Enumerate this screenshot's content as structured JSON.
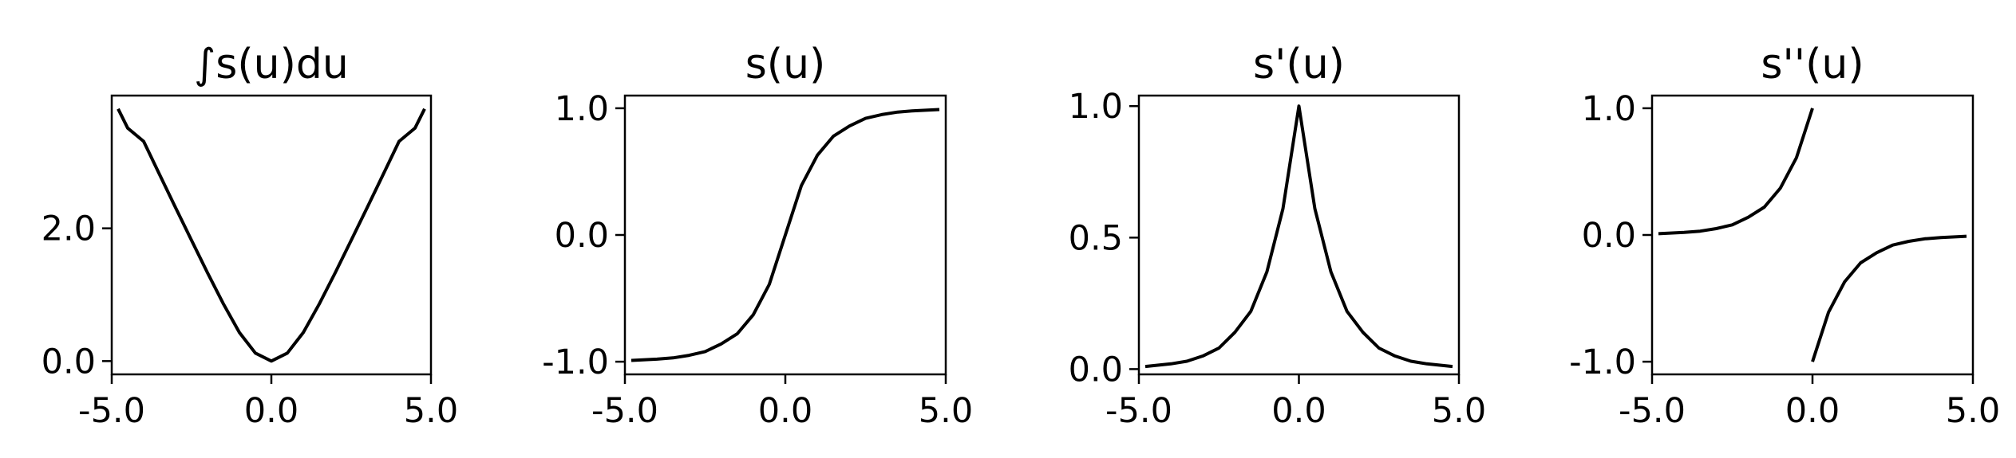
{
  "figure": {
    "background": "#ffffff",
    "line_color": "#000000"
  },
  "chart_data": [
    {
      "type": "line",
      "title": "∫s(u)du",
      "xlabel": "",
      "ylabel": "",
      "xlim": [
        -5.0,
        5.0
      ],
      "ylim": [
        -0.2,
        4.0
      ],
      "x_ticks": [
        -5.0,
        0.0,
        5.0
      ],
      "x_tick_labels": [
        "-5.0",
        "0.0",
        "5.0"
      ],
      "y_ticks": [
        0.0,
        2.0
      ],
      "y_tick_labels": [
        "0.0",
        "2.0"
      ],
      "grid": false,
      "legend": "none",
      "series": [
        {
          "x": [
            -4.8,
            -4.5,
            -4.0,
            -3.5,
            -3.0,
            -2.5,
            -2.0,
            -1.5,
            -1.0,
            -0.5,
            0.0,
            0.5,
            1.0,
            1.5,
            2.0,
            2.5,
            3.0,
            3.5,
            4.0,
            4.5,
            4.8
          ],
          "y": [
            3.8,
            3.51,
            3.31,
            2.81,
            2.31,
            1.82,
            1.33,
            0.86,
            0.43,
            0.12,
            0.0,
            0.12,
            0.43,
            0.86,
            1.33,
            1.82,
            2.31,
            2.81,
            3.31,
            3.51,
            3.8
          ]
        }
      ]
    },
    {
      "type": "line",
      "title": "s(u)",
      "xlabel": "",
      "ylabel": "",
      "xlim": [
        -5.0,
        5.0
      ],
      "ylim": [
        -1.1,
        1.1
      ],
      "x_ticks": [
        -5.0,
        0.0,
        5.0
      ],
      "x_tick_labels": [
        "-5.0",
        "0.0",
        "5.0"
      ],
      "y_ticks": [
        -1.0,
        0.0,
        1.0
      ],
      "y_tick_labels": [
        "-1.0",
        "0.0",
        "1.0"
      ],
      "grid": false,
      "legend": "none",
      "series": [
        {
          "x": [
            -4.8,
            -4.0,
            -3.5,
            -3.0,
            -2.5,
            -2.0,
            -1.5,
            -1.0,
            -0.5,
            0.0,
            0.5,
            1.0,
            1.5,
            2.0,
            2.5,
            3.0,
            3.5,
            4.0,
            4.8
          ],
          "y": [
            -0.99,
            -0.98,
            -0.97,
            -0.95,
            -0.92,
            -0.86,
            -0.78,
            -0.63,
            -0.39,
            0.0,
            0.39,
            0.63,
            0.78,
            0.86,
            0.92,
            0.95,
            0.97,
            0.98,
            0.99
          ]
        }
      ]
    },
    {
      "type": "line",
      "title": "s'(u)",
      "xlabel": "",
      "ylabel": "",
      "xlim": [
        -5.0,
        5.0
      ],
      "ylim": [
        -0.02,
        1.04
      ],
      "x_ticks": [
        -5.0,
        0.0,
        5.0
      ],
      "x_tick_labels": [
        "-5.0",
        "0.0",
        "5.0"
      ],
      "y_ticks": [
        0.0,
        0.5,
        1.0
      ],
      "y_tick_labels": [
        "0.0",
        "0.5",
        "1.0"
      ],
      "grid": false,
      "legend": "none",
      "series": [
        {
          "x": [
            -4.8,
            -4.0,
            -3.5,
            -3.0,
            -2.5,
            -2.0,
            -1.5,
            -1.0,
            -0.5,
            0.0,
            0.5,
            1.0,
            1.5,
            2.0,
            2.5,
            3.0,
            3.5,
            4.0,
            4.8
          ],
          "y": [
            0.01,
            0.02,
            0.03,
            0.05,
            0.08,
            0.14,
            0.22,
            0.37,
            0.61,
            1.0,
            0.61,
            0.37,
            0.22,
            0.14,
            0.08,
            0.05,
            0.03,
            0.02,
            0.01
          ]
        }
      ]
    },
    {
      "type": "line",
      "title": "s''(u)",
      "xlabel": "",
      "ylabel": "",
      "xlim": [
        -5.0,
        5.0
      ],
      "ylim": [
        -1.1,
        1.1
      ],
      "x_ticks": [
        -5.0,
        0.0,
        5.0
      ],
      "x_tick_labels": [
        "-5.0",
        "0.0",
        "5.0"
      ],
      "y_ticks": [
        -1.0,
        0.0,
        1.0
      ],
      "y_tick_labels": [
        "-1.0",
        "0.0",
        "1.0"
      ],
      "grid": false,
      "legend": "none",
      "series": [
        {
          "x": [
            -4.8,
            -4.0,
            -3.5,
            -3.0,
            -2.5,
            -2.0,
            -1.5,
            -1.0,
            -0.5,
            0.0
          ],
          "y": [
            0.01,
            0.02,
            0.03,
            0.05,
            0.08,
            0.14,
            0.22,
            0.37,
            0.61,
            1.0
          ]
        },
        {
          "x": [
            0.0,
            0.5,
            1.0,
            1.5,
            2.0,
            2.5,
            3.0,
            3.5,
            4.0,
            4.8
          ],
          "y": [
            -1.0,
            -0.61,
            -0.37,
            -0.22,
            -0.14,
            -0.08,
            -0.05,
            -0.03,
            -0.02,
            -0.01
          ]
        }
      ]
    }
  ]
}
